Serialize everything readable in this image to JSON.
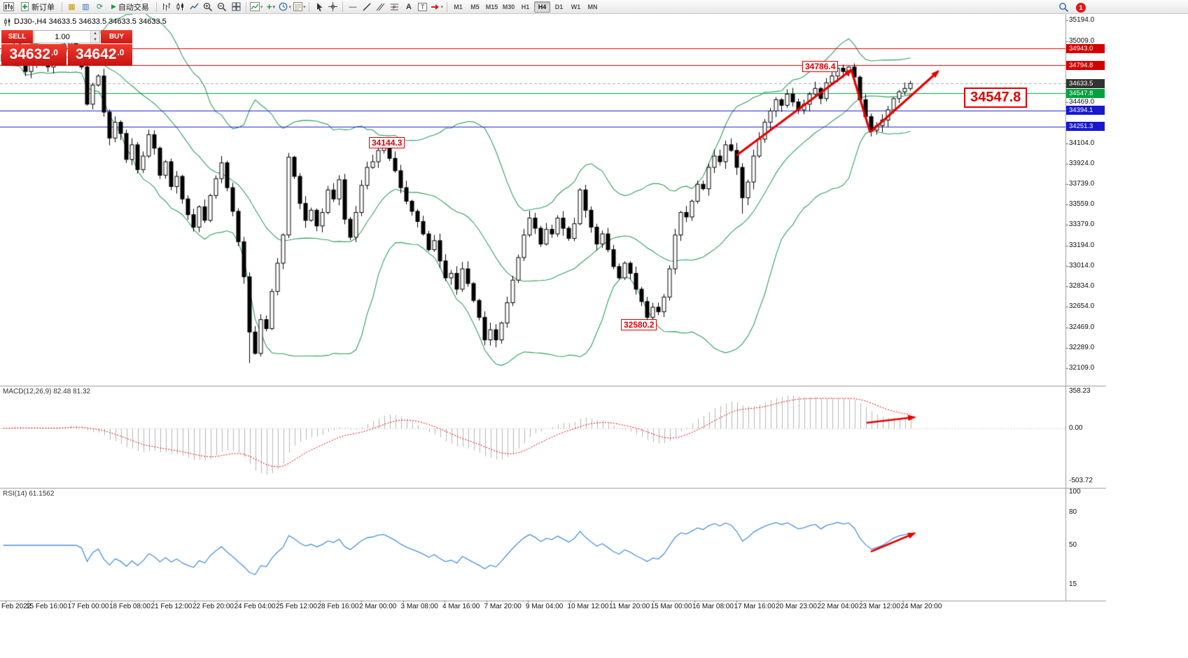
{
  "toolbar": {
    "new_order_label": "新订单",
    "autotrading_label": "自动交易",
    "timeframes": [
      "M1",
      "M5",
      "M15",
      "M30",
      "H1",
      "H4",
      "D1",
      "W1",
      "MN"
    ],
    "active_timeframe": "H4",
    "notification_count": "1",
    "icon_names": [
      "chart-window-icon",
      "new-order-button",
      "marketwatch-icon",
      "data-window-icon",
      "navigator-icon",
      "autotrading-button",
      "bar-chart-icon",
      "candlestick-chart-icon",
      "line-chart-icon",
      "zoom-in-icon",
      "zoom-out-icon",
      "tile-windows-icon",
      "indicators-icon",
      "add-indicator-icon",
      "period-clock-icon",
      "template-icon",
      "cursor-icon",
      "crosshair-icon",
      "horizontal-line-icon",
      "trendline-icon",
      "channel-icon",
      "fibonacci-icon",
      "text-icon",
      "text-label-icon",
      "arrow-shapes-icon",
      "search-icon",
      "notification-badge"
    ]
  },
  "chart_header": {
    "title": "DJ30-,H4 34633.5 34633.5 34633.5 34633.5"
  },
  "trade_panel": {
    "sell_label": "SELL",
    "buy_label": "BUY",
    "lot_value": "1.00",
    "sell_price_int": "34632",
    "sell_price_dec": ".0",
    "buy_price_int": "34642",
    "buy_price_dec": ".0"
  },
  "indicators": {
    "macd_label": "MACD(12,26,9) 82.48 81.32",
    "rsi_label": "RSI(14) 61.1562"
  },
  "annotations": {
    "peak_label": "34786.4",
    "mid_label": "34144.3",
    "low_label": "32580.2",
    "level_label_big": "34547.8"
  },
  "chart_data": {
    "type": "candlestick",
    "symbol": "DJ30-",
    "timeframe": "H4",
    "price_range": [
      32109.0,
      35194.0
    ],
    "price_axis_labels": [
      "35194.0",
      "35009.0",
      "34469.0",
      "34104.0",
      "33924.0",
      "33739.0",
      "33559.0",
      "33379.0",
      "33194.0",
      "33014.0",
      "32834.0",
      "32654.0",
      "32469.0",
      "32289.0",
      "32109.0"
    ],
    "price_tags": [
      {
        "value": "34943.0",
        "price": 34943.0,
        "color": "#d40000"
      },
      {
        "value": "34794.8",
        "price": 34794.8,
        "color": "#d40000"
      },
      {
        "value": "34633.5",
        "price": 34633.5,
        "color": "#333333"
      },
      {
        "value": "34547.8",
        "price": 34547.8,
        "color": "#00a23c"
      },
      {
        "value": "34394.1",
        "price": 34394.1,
        "color": "#1818d0"
      },
      {
        "value": "34251.3",
        "price": 34251.3,
        "color": "#1818d0"
      }
    ],
    "levels": [
      {
        "price": 34943.0,
        "color": "#dd0000"
      },
      {
        "price": 34794.8,
        "color": "#dd0000"
      },
      {
        "price": 34547.8,
        "color": "#00a23c"
      },
      {
        "price": 34394.1,
        "color": "#2222cc"
      },
      {
        "price": 34251.3,
        "color": "#2222cc"
      }
    ],
    "current_price": 34633.5,
    "bollinger": {
      "period": 20,
      "deviation": 2,
      "color": "#2e9e5e"
    },
    "closes": [
      34830,
      34900,
      34960,
      34850,
      34740,
      34820,
      34890,
      34840,
      34780,
      34860,
      34920,
      34960,
      34990,
      34860,
      34780,
      34450,
      34620,
      34700,
      34380,
      34150,
      34290,
      34190,
      33960,
      34090,
      33870,
      33990,
      34180,
      34060,
      33820,
      33940,
      33720,
      33810,
      33610,
      33470,
      33360,
      33540,
      33420,
      33640,
      33790,
      33930,
      33710,
      33500,
      33230,
      32920,
      32430,
      32240,
      32540,
      32460,
      32790,
      33040,
      33290,
      33980,
      33810,
      33570,
      33420,
      33510,
      33370,
      33490,
      33690,
      33610,
      33780,
      33430,
      33270,
      33490,
      33730,
      33890,
      33940,
      34040,
      34070,
      33970,
      33860,
      33710,
      33590,
      33500,
      33410,
      33300,
      33160,
      33240,
      33060,
      32910,
      32950,
      32810,
      32990,
      32860,
      32710,
      32560,
      32360,
      32450,
      32360,
      32510,
      32690,
      32890,
      33090,
      33290,
      33440,
      33350,
      33210,
      33340,
      33300,
      33440,
      33350,
      33260,
      33390,
      33690,
      33510,
      33360,
      33210,
      33300,
      33160,
      33010,
      32910,
      33040,
      32950,
      32810,
      32700,
      32560,
      32650,
      32610,
      32740,
      32990,
      33290,
      33490,
      33450,
      33590,
      33740,
      33700,
      33890,
      33990,
      33940,
      34090,
      34040,
      33890,
      33620,
      33760,
      33990,
      34140,
      34290,
      34390,
      34490,
      34440,
      34540,
      34470,
      34400,
      34450,
      34540,
      34590,
      34500,
      34640,
      34700,
      34770,
      34740,
      34780,
      34690,
      34490,
      34340,
      34220,
      34260,
      34310,
      34400,
      34500,
      34560,
      34590,
      34633.5
    ],
    "wick_overrides": {
      "12": {
        "high": 35060
      },
      "44": {
        "low": 32155
      },
      "45": {
        "low": 32230
      },
      "68": {
        "high": 34144.3
      },
      "117": {
        "low": 32580.2
      },
      "132": {
        "low": 33480
      },
      "151": {
        "high": 34786.4
      }
    },
    "macd": {
      "params": "12,26,9",
      "last_values": [
        82.48,
        81.32
      ],
      "axis_labels": [
        "358.23",
        "0.00",
        "-503.72"
      ]
    },
    "rsi": {
      "period": 14,
      "last_value": 61.1562,
      "axis_labels": [
        "100",
        "80",
        "50",
        "15"
      ]
    },
    "time_axis_labels": [
      "Feb 2022",
      "15 Feb 16:00",
      "17 Feb 00:00",
      "18 Feb 08:00",
      "21 Feb 12:00",
      "22 Feb 20:00",
      "24 Feb 04:00",
      "25 Feb 12:00",
      "28 Feb 16:00",
      "2 Mar 00:00",
      "3 Mar 08:00",
      "4 Mar 16:00",
      "7 Mar 20:00",
      "9 Mar 04:00",
      "10 Mar 12:00",
      "11 Mar 20:00",
      "15 Mar 00:00",
      "16 Mar 08:00",
      "17 Mar 16:00",
      "20 Mar 23:00",
      "22 Mar 04:00",
      "23 Mar 12:00",
      "24 Mar 20:00"
    ],
    "trend_arrows": [
      {
        "points": [
          [
            1052,
            222
          ],
          [
            1216,
            100
          ]
        ],
        "head": true,
        "width": 3.2
      },
      {
        "points": [
          [
            1216,
            100
          ],
          [
            1243,
            189
          ]
        ],
        "head": false,
        "width": 3.2
      },
      {
        "points": [
          [
            1243,
            189
          ],
          [
            1340,
            102
          ]
        ],
        "head": true,
        "width": 3.2
      },
      {
        "points": [
          [
            1238,
            604
          ],
          [
            1306,
            596
          ]
        ],
        "head": true,
        "width": 2.6
      },
      {
        "points": [
          [
            1244,
            788
          ],
          [
            1306,
            762
          ]
        ],
        "head": true,
        "width": 2.6
      }
    ],
    "arrow_color": "#e60000"
  }
}
